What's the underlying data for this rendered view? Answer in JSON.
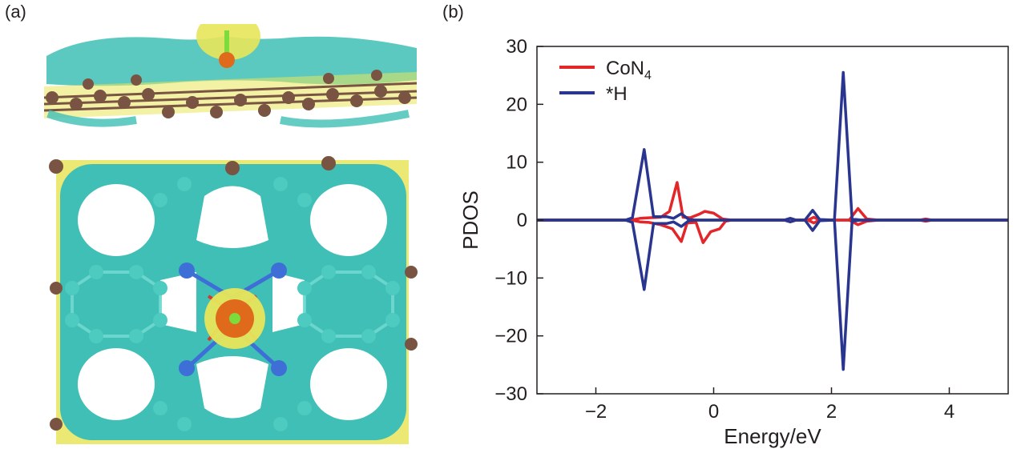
{
  "panels": {
    "a_label": "(a)",
    "b_label": "(b)"
  },
  "structure": {
    "colors": {
      "cyan_isosurface": "#3fbfb5",
      "yellow_isosurface": "#e8e55a",
      "carbon": "#7a5443",
      "nitrogen": "#3d6fd6",
      "cobalt": "#e06a1c",
      "hydrogen": "#7bdc3c",
      "bond_red": "#d23b2b"
    }
  },
  "chart_data": {
    "type": "line",
    "xlabel": "Energy/eV",
    "ylabel": "PDOS",
    "xlim": [
      -3,
      5
    ],
    "ylim": [
      -30,
      30
    ],
    "xticks": [
      -2,
      0,
      2,
      4
    ],
    "yticks": [
      -30,
      -20,
      -10,
      0,
      10,
      20,
      30
    ],
    "xtick_labels": [
      "−2",
      "0",
      "2",
      "4"
    ],
    "ytick_labels": [
      "−30",
      "−20",
      "−10",
      "0",
      "10",
      "20",
      "30"
    ],
    "legend_position": "top-left",
    "grid": false,
    "series": [
      {
        "name": "CoN4",
        "label_main": "CoN",
        "label_sub": "4",
        "color": "#e3262a",
        "up": [
          [
            -3,
            0
          ],
          [
            -1.4,
            0
          ],
          [
            -1.25,
            0.3
          ],
          [
            -1.1,
            0.4
          ],
          [
            -0.9,
            0.5
          ],
          [
            -0.75,
            1.5
          ],
          [
            -0.62,
            6.5
          ],
          [
            -0.52,
            0.5
          ],
          [
            -0.4,
            0.4
          ],
          [
            -0.25,
            1.0
          ],
          [
            -0.15,
            1.5
          ],
          [
            0,
            1.2
          ],
          [
            0.15,
            0.2
          ],
          [
            0.3,
            0
          ],
          [
            1.2,
            0
          ],
          [
            1.3,
            0.3
          ],
          [
            1.4,
            0
          ],
          [
            1.6,
            0
          ],
          [
            1.7,
            0.5
          ],
          [
            1.8,
            0
          ],
          [
            2.3,
            0
          ],
          [
            2.45,
            2.0
          ],
          [
            2.6,
            0.2
          ],
          [
            2.8,
            0
          ],
          [
            3.5,
            0
          ],
          [
            3.6,
            0.2
          ],
          [
            3.7,
            0
          ],
          [
            5,
            0
          ]
        ],
        "down": [
          [
            -3,
            0
          ],
          [
            -1.4,
            0
          ],
          [
            -1.25,
            -0.3
          ],
          [
            -1.1,
            -0.4
          ],
          [
            -0.9,
            -0.8
          ],
          [
            -0.7,
            -1.5
          ],
          [
            -0.55,
            -3.7
          ],
          [
            -0.45,
            -0.5
          ],
          [
            -0.3,
            -0.4
          ],
          [
            -0.18,
            -3.9
          ],
          [
            -0.05,
            -2.0
          ],
          [
            0.1,
            -1.5
          ],
          [
            0.2,
            -0.2
          ],
          [
            0.3,
            0
          ],
          [
            1.2,
            0
          ],
          [
            1.3,
            -0.3
          ],
          [
            1.4,
            0
          ],
          [
            1.6,
            0
          ],
          [
            1.7,
            -0.5
          ],
          [
            1.8,
            0
          ],
          [
            2.3,
            0
          ],
          [
            2.45,
            -0.8
          ],
          [
            2.6,
            -0.2
          ],
          [
            2.8,
            0
          ],
          [
            3.5,
            0
          ],
          [
            3.6,
            -0.2
          ],
          [
            3.7,
            0
          ],
          [
            5,
            0
          ]
        ]
      },
      {
        "name": "*H",
        "color": "#2a3590",
        "up": [
          [
            -3,
            0
          ],
          [
            -1.5,
            0
          ],
          [
            -1.38,
            0.4
          ],
          [
            -1.18,
            12.2
          ],
          [
            -1.02,
            0.6
          ],
          [
            -0.8,
            0.6
          ],
          [
            -0.68,
            0.3
          ],
          [
            -0.55,
            1.1
          ],
          [
            -0.42,
            0.1
          ],
          [
            -0.3,
            0
          ],
          [
            1.2,
            0
          ],
          [
            1.3,
            0.3
          ],
          [
            1.4,
            0
          ],
          [
            1.55,
            0
          ],
          [
            1.68,
            1.7
          ],
          [
            1.8,
            0.1
          ],
          [
            2.05,
            0
          ],
          [
            2.2,
            25.5
          ],
          [
            2.35,
            0.2
          ],
          [
            2.5,
            0
          ],
          [
            5,
            0
          ]
        ],
        "down": [
          [
            -3,
            0
          ],
          [
            -1.5,
            0
          ],
          [
            -1.38,
            -0.4
          ],
          [
            -1.18,
            -12.0
          ],
          [
            -1.02,
            -0.6
          ],
          [
            -0.8,
            -0.6
          ],
          [
            -0.68,
            -0.3
          ],
          [
            -0.55,
            -1.1
          ],
          [
            -0.42,
            -0.1
          ],
          [
            -0.3,
            0
          ],
          [
            1.2,
            0
          ],
          [
            1.3,
            -0.3
          ],
          [
            1.4,
            0
          ],
          [
            1.55,
            0
          ],
          [
            1.68,
            -1.8
          ],
          [
            1.8,
            -0.1
          ],
          [
            2.05,
            0
          ],
          [
            2.2,
            -25.8
          ],
          [
            2.35,
            -0.2
          ],
          [
            2.5,
            0
          ],
          [
            5,
            0
          ]
        ]
      }
    ]
  }
}
